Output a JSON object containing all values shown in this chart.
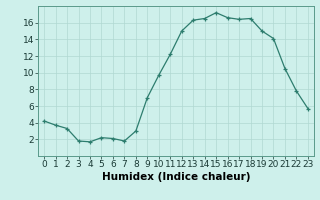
{
  "x": [
    0,
    1,
    2,
    3,
    4,
    5,
    6,
    7,
    8,
    9,
    10,
    11,
    12,
    13,
    14,
    15,
    16,
    17,
    18,
    19,
    20,
    21,
    22,
    23
  ],
  "y": [
    4.2,
    3.7,
    3.3,
    1.8,
    1.7,
    2.2,
    2.1,
    1.8,
    3.0,
    7.0,
    9.7,
    12.2,
    15.0,
    16.3,
    16.5,
    17.2,
    16.6,
    16.4,
    16.5,
    15.0,
    14.1,
    10.5,
    7.8,
    5.7
  ],
  "xlabel": "Humidex (Indice chaleur)",
  "xlim": [
    -0.5,
    23.5
  ],
  "ylim": [
    0,
    18
  ],
  "yticks": [
    2,
    4,
    6,
    8,
    10,
    12,
    14,
    16
  ],
  "xticks": [
    0,
    1,
    2,
    3,
    4,
    5,
    6,
    7,
    8,
    9,
    10,
    11,
    12,
    13,
    14,
    15,
    16,
    17,
    18,
    19,
    20,
    21,
    22,
    23
  ],
  "line_color": "#2d7d6e",
  "bg_color": "#cef0eb",
  "grid_color": "#b0d8d2",
  "tick_fontsize": 6.5,
  "label_fontsize": 7.5
}
